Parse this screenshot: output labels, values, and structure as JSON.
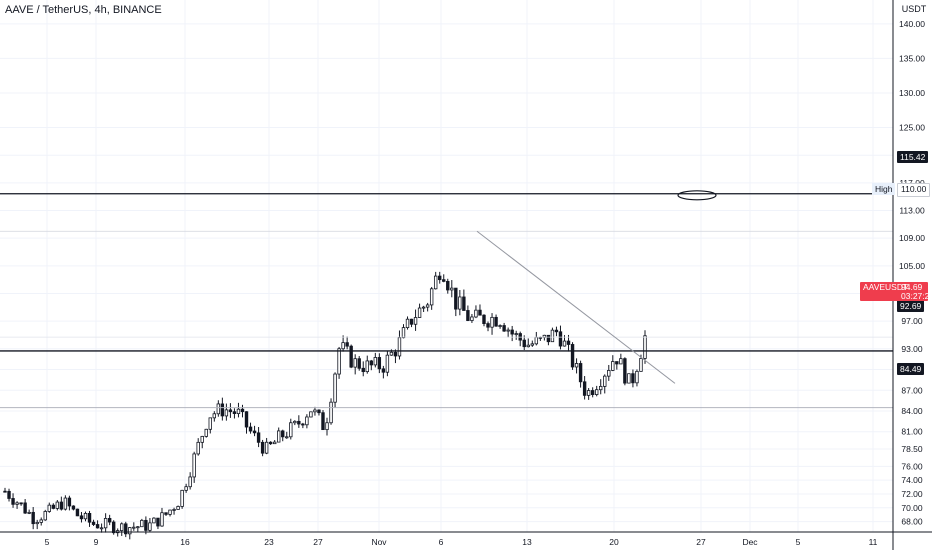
{
  "header": {
    "title": "AAVE / TetherUS, 4h, BINANCE",
    "unit": "USDT"
  },
  "symbol": "AAVEUSDT",
  "last_price": "94.69",
  "countdown": "03:27:27",
  "high_label": "High",
  "high_price": "110.00",
  "levels": [
    {
      "price": 115.42,
      "label": "115.42"
    },
    {
      "price": 92.69,
      "label": "92.69"
    },
    {
      "price": 84.49,
      "label": "84.49"
    }
  ],
  "colors": {
    "up": "#131722",
    "down": "#131722",
    "price_tag": "#ef3d4d",
    "grid": "#f0f3fa",
    "axis_text": "#131722",
    "trend_line": "#9598a1"
  },
  "chart_data": {
    "type": "candlestick",
    "y_ticks": [
      140,
      135,
      130,
      125,
      121,
      117,
      113,
      109,
      105,
      101,
      97,
      93,
      90,
      87,
      84,
      81,
      78.5,
      76,
      74,
      72,
      70,
      68
    ],
    "y_tick_labels": [
      "140.00",
      "135.00",
      "130.00",
      "125.00",
      "121.00",
      "117.00",
      "113.00",
      "109.00",
      "105.00",
      "101.00",
      "97.00",
      "93.00",
      "90.00",
      "87.00",
      "84.00",
      "81.00",
      "78.50",
      "76.00",
      "74.00",
      "72.00",
      "70.00",
      "68.00"
    ],
    "x_tick_labels": [
      "5",
      "9",
      "16",
      "23",
      "27",
      "Nov",
      "6",
      "13",
      "20",
      "27",
      "Dec",
      "5",
      "11"
    ],
    "ylim": [
      66.5,
      142
    ],
    "series": [
      {
        "date": "Oct 2",
        "close": 72.4
      },
      {
        "date": "Oct 3",
        "close": 70.6
      },
      {
        "date": "Oct 4",
        "close": 68.5
      },
      {
        "date": "Oct 5",
        "close": 69.3
      },
      {
        "date": "Oct 6",
        "close": 70.9
      },
      {
        "date": "Oct 7",
        "close": 68.9
      },
      {
        "date": "Oct 8",
        "close": 67.7
      },
      {
        "date": "Oct 9",
        "close": 67.5
      },
      {
        "date": "Oct 10",
        "close": 67.2
      },
      {
        "date": "Oct 16",
        "close": 67.3
      },
      {
        "date": "Oct 19",
        "close": 67.5
      },
      {
        "date": "Oct 20",
        "close": 68.9
      },
      {
        "date": "Oct 21",
        "close": 71.2
      },
      {
        "date": "Oct 22",
        "close": 77.2
      },
      {
        "date": "Oct 23",
        "close": 83.4
      },
      {
        "date": "Oct 24",
        "close": 84.3
      },
      {
        "date": "Oct 25",
        "close": 83.7
      },
      {
        "date": "Oct 26",
        "close": 80.6
      },
      {
        "date": "Oct 27",
        "close": 78.3
      },
      {
        "date": "Oct 28",
        "close": 80.4
      },
      {
        "date": "Oct 29",
        "close": 81.8
      },
      {
        "date": "Oct 30",
        "close": 84.4
      },
      {
        "date": "Oct 31",
        "close": 81.6
      },
      {
        "date": "Nov 1",
        "close": 93.4
      },
      {
        "date": "Nov 2",
        "close": 91.0
      },
      {
        "date": "Nov 3",
        "close": 90.4
      },
      {
        "date": "Nov 4",
        "close": 90.6
      },
      {
        "date": "Nov 5",
        "close": 93.4
      },
      {
        "date": "Nov 6",
        "close": 97.5
      },
      {
        "date": "Nov 7",
        "close": 99.6
      },
      {
        "date": "Nov 8",
        "close": 105.2
      },
      {
        "date": "Nov 9",
        "close": 99.7
      },
      {
        "date": "Nov 10",
        "close": 97.2
      },
      {
        "date": "Nov 11",
        "close": 97.4
      },
      {
        "date": "Nov 12",
        "close": 97.5
      },
      {
        "date": "Nov 13",
        "close": 94.9
      },
      {
        "date": "Nov 14",
        "close": 93.6
      },
      {
        "date": "Nov 15",
        "close": 94.1
      },
      {
        "date": "Nov 16",
        "close": 95.6
      },
      {
        "date": "Nov 17",
        "close": 91.2
      },
      {
        "date": "Nov 18",
        "close": 86.4
      },
      {
        "date": "Nov 19",
        "close": 89.0
      },
      {
        "date": "Nov 20",
        "close": 92.1
      },
      {
        "date": "Nov 21",
        "close": 87.6
      },
      {
        "date": "Nov 22",
        "close": 94.7
      }
    ]
  }
}
